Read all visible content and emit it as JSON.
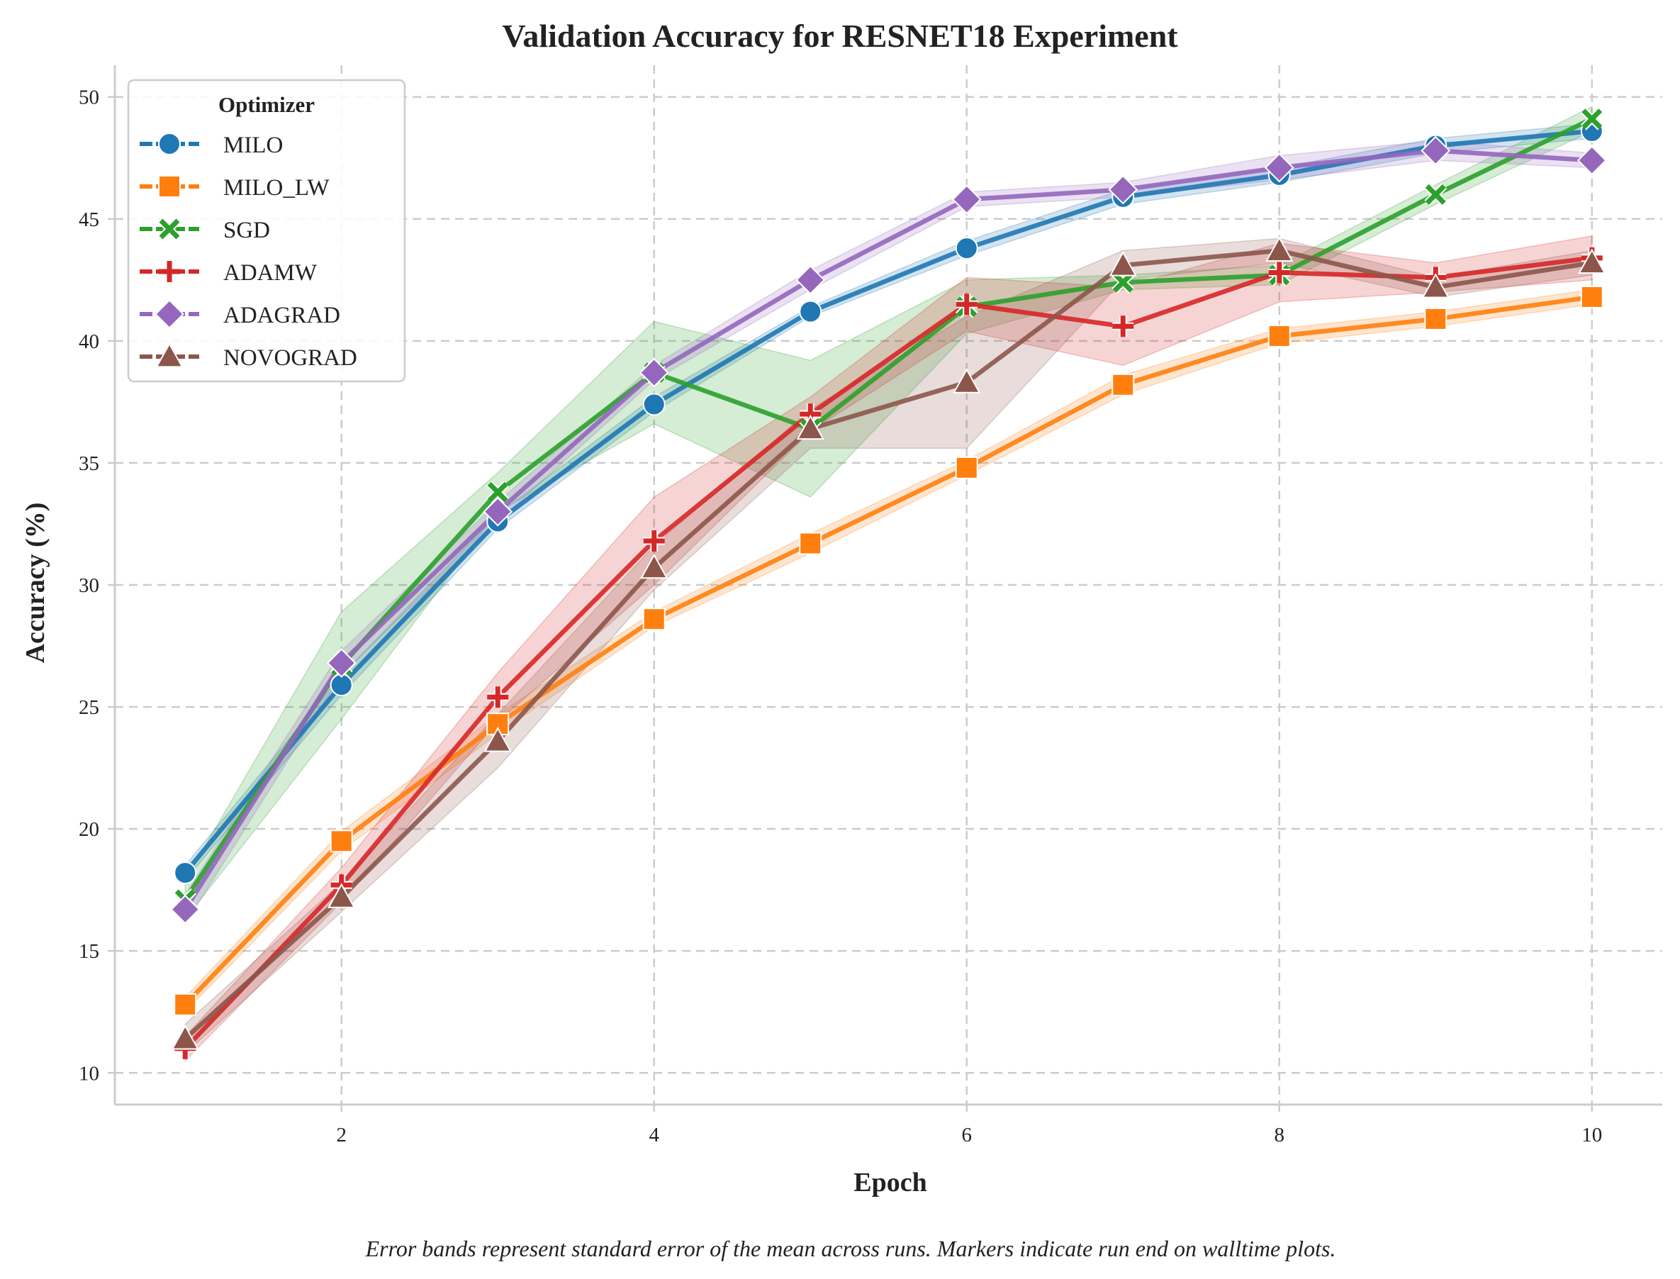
{
  "chart_data": {
    "type": "line",
    "title": "Validation Accuracy for RESNET18 Experiment",
    "xlabel": "Epoch",
    "ylabel": "Accuracy (%)",
    "xlim": [
      0.55,
      10.45
    ],
    "ylim": [
      8.7,
      51.3
    ],
    "xticks": [
      2,
      4,
      6,
      8,
      10
    ],
    "yticks": [
      10,
      15,
      20,
      25,
      30,
      35,
      40,
      45,
      50
    ],
    "grid": true,
    "legend": {
      "title": "Optimizer",
      "placement": "top-left"
    },
    "caption": "Error bands represent standard error of the mean across runs. Markers indicate run end on walltime plots.",
    "x": [
      1,
      2,
      3,
      4,
      5,
      6,
      7,
      8,
      9,
      10
    ],
    "series": [
      {
        "name": "MILO",
        "color": "#1f77b4",
        "marker": "circle",
        "values": [
          18.2,
          25.9,
          32.6,
          37.4,
          41.2,
          43.8,
          45.9,
          46.8,
          48.0,
          48.6
        ],
        "err": [
          0.3,
          0.4,
          0.3,
          0.3,
          0.2,
          0.3,
          0.3,
          0.3,
          0.3,
          0.3
        ]
      },
      {
        "name": "MILO_LW",
        "color": "#ff7f0e",
        "marker": "square",
        "values": [
          12.8,
          19.5,
          24.3,
          28.6,
          31.7,
          34.8,
          38.2,
          40.2,
          40.9,
          41.8
        ],
        "err": [
          0.3,
          0.4,
          0.4,
          0.3,
          0.4,
          0.3,
          0.4,
          0.3,
          0.3,
          0.3
        ]
      },
      {
        "name": "SGD",
        "color": "#2ca02c",
        "marker": "x",
        "values": [
          17.1,
          26.7,
          33.8,
          38.7,
          36.4,
          41.4,
          42.4,
          42.7,
          46.0,
          49.1
        ],
        "err": [
          0.8,
          2.2,
          0.8,
          2.1,
          2.8,
          1.1,
          0.3,
          0.4,
          0.4,
          0.5
        ]
      },
      {
        "name": "ADAMW",
        "color": "#d62728",
        "marker": "plus",
        "values": [
          11.0,
          17.7,
          25.4,
          31.8,
          37.0,
          41.5,
          40.6,
          42.8,
          42.6,
          43.4
        ],
        "err": [
          0.5,
          0.7,
          1.0,
          1.8,
          0.7,
          1.1,
          1.6,
          1.2,
          0.6,
          0.9
        ]
      },
      {
        "name": "ADAGRAD",
        "color": "#9467bd",
        "marker": "diamond",
        "values": [
          16.7,
          26.8,
          33.0,
          38.7,
          42.5,
          45.8,
          46.2,
          47.1,
          47.8,
          47.4
        ],
        "err": [
          0.6,
          0.5,
          0.4,
          0.3,
          0.4,
          0.3,
          0.3,
          0.5,
          0.4,
          0.3
        ]
      },
      {
        "name": "NOVOGRAD",
        "color": "#8c564b",
        "marker": "triangle",
        "values": [
          11.4,
          17.2,
          23.6,
          30.7,
          36.4,
          38.3,
          43.1,
          43.7,
          42.2,
          43.2
        ],
        "err": [
          0.6,
          0.6,
          1.1,
          0.9,
          0.8,
          2.7,
          0.6,
          0.5,
          0.4,
          0.5
        ]
      }
    ]
  }
}
